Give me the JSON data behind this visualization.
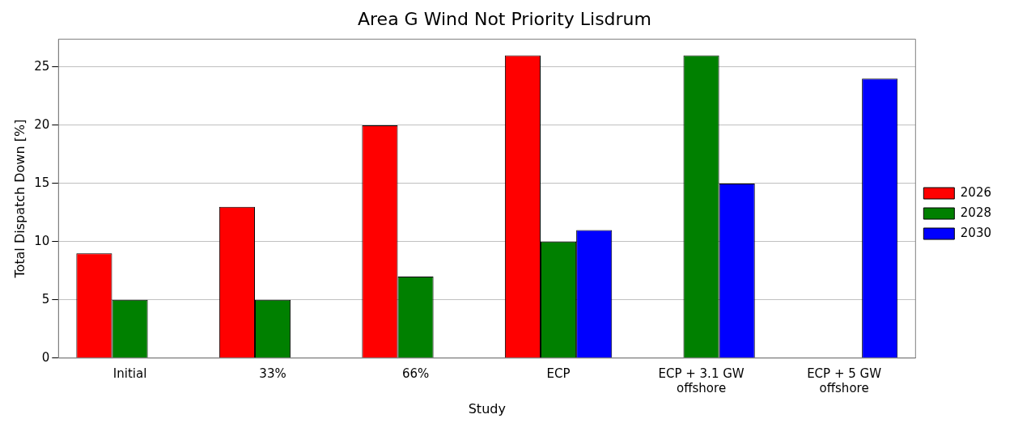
{
  "chart_data": {
    "type": "bar",
    "title": "Area G Wind Not Priority Lisdrum",
    "xlabel": "Study",
    "ylabel": "Total Dispatch Down [%]",
    "categories": [
      "Initial",
      "33%",
      "66%",
      "ECP",
      "ECP + 3.1 GW offshore",
      "ECP + 5 GW offshore"
    ],
    "series": [
      {
        "name": "2026",
        "color": "#ff0000",
        "values": [
          9,
          13,
          20,
          26,
          null,
          null
        ]
      },
      {
        "name": "2028",
        "color": "#008000",
        "values": [
          5,
          5,
          7,
          10,
          26,
          null
        ]
      },
      {
        "name": "2030",
        "color": "#0000ff",
        "values": [
          null,
          null,
          null,
          11,
          15,
          24
        ]
      }
    ],
    "ylim": [
      0,
      27.4
    ],
    "yticks": [
      0,
      5,
      10,
      15,
      20,
      25
    ],
    "grid": "y",
    "legend": "right"
  }
}
